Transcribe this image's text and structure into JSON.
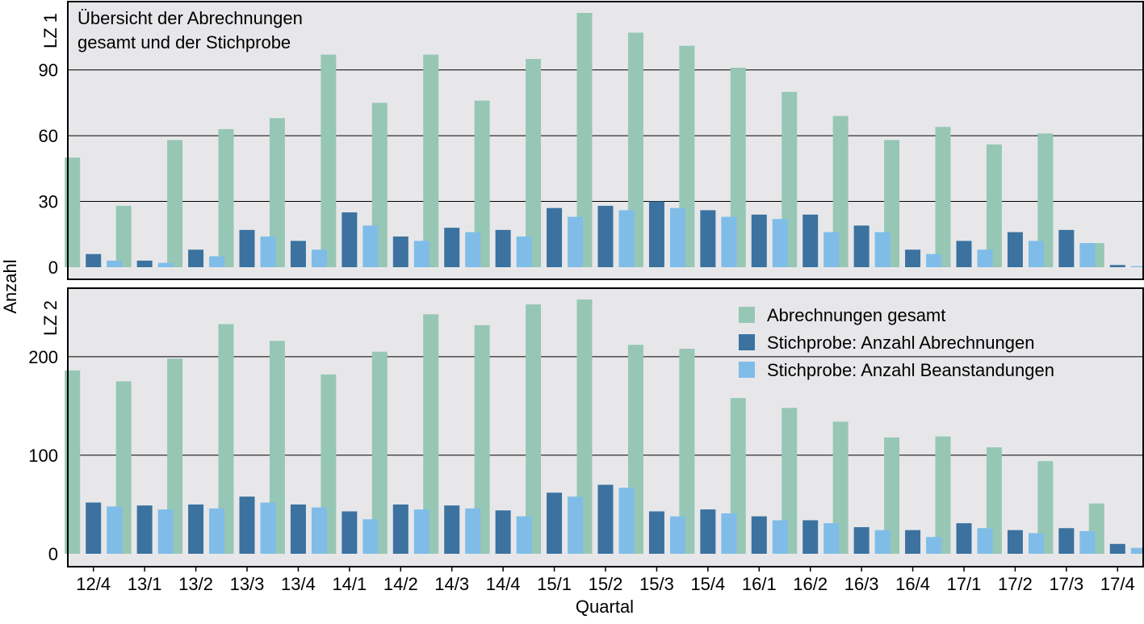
{
  "chart_title": "Übersicht der Abrechnungen\ngesamt und der Stichprobe",
  "ylabel": "Anzahl",
  "xlabel": "Quartal",
  "colors": {
    "gesamt": "#96c7b4",
    "abrechnungen": "#3b729f",
    "beanstandungen": "#7fbde8",
    "panel_bg": "#e7e7ea",
    "grid": "#000000"
  },
  "legend": [
    {
      "key": "gesamt",
      "label": "Abrechnungen gesamt"
    },
    {
      "key": "abrechnungen",
      "label": "Stichprobe: Anzahl Abrechnungen"
    },
    {
      "key": "beanstandungen",
      "label": "Stichprobe: Anzahl Beanstandungen"
    }
  ],
  "chart_data": {
    "type": "bar",
    "categories": [
      "12/4",
      "13/1",
      "13/2",
      "13/3",
      "13/4",
      "14/1",
      "14/2",
      "14/3",
      "14/4",
      "15/1",
      "15/2",
      "15/3",
      "15/4",
      "16/1",
      "16/2",
      "16/3",
      "16/4",
      "17/1",
      "17/2",
      "17/3",
      "17/4"
    ],
    "panels": [
      {
        "label": "LZ 1",
        "yticks": [
          0,
          30,
          60,
          90
        ],
        "ylim": [
          0,
          116
        ],
        "series": [
          {
            "key": "gesamt",
            "name": "Abrechnungen gesamt",
            "values": [
              50,
              28,
              58,
              63,
              68,
              97,
              75,
              97,
              76,
              95,
              116,
              107,
              101,
              91,
              80,
              69,
              58,
              64,
              56,
              61,
              11
            ]
          },
          {
            "key": "abrechnungen",
            "name": "Stichprobe: Anzahl Abrechnungen",
            "values": [
              6,
              3,
              8,
              17,
              12,
              25,
              14,
              18,
              17,
              27,
              28,
              30,
              26,
              24,
              24,
              19,
              8,
              12,
              16,
              17,
              1
            ]
          },
          {
            "key": "beanstandungen",
            "name": "Stichprobe: Anzahl Beanstandungen",
            "values": [
              3,
              2,
              5,
              14,
              8,
              19,
              12,
              16,
              14,
              23,
              26,
              27,
              23,
              22,
              16,
              16,
              6,
              8,
              12,
              11,
              0.5
            ]
          }
        ]
      },
      {
        "label": "LZ 2",
        "yticks": [
          0,
          100,
          200
        ],
        "ylim": [
          0,
          260
        ],
        "series": [
          {
            "key": "gesamt",
            "name": "Abrechnungen gesamt",
            "values": [
              186,
              175,
              198,
              233,
              216,
              182,
              205,
              243,
              232,
              253,
              258,
              212,
              208,
              158,
              148,
              134,
              118,
              119,
              108,
              94,
              51
            ]
          },
          {
            "key": "abrechnungen",
            "name": "Stichprobe: Anzahl Abrechnungen",
            "values": [
              52,
              49,
              50,
              58,
              50,
              43,
              50,
              49,
              44,
              62,
              70,
              43,
              45,
              38,
              34,
              27,
              24,
              31,
              24,
              26,
              10
            ]
          },
          {
            "key": "beanstandungen",
            "name": "Stichprobe: Anzahl Beanstandungen",
            "values": [
              48,
              45,
              46,
              52,
              47,
              35,
              45,
              46,
              38,
              58,
              67,
              38,
              41,
              34,
              31,
              24,
              17,
              26,
              21,
              23,
              6
            ]
          }
        ]
      }
    ]
  }
}
